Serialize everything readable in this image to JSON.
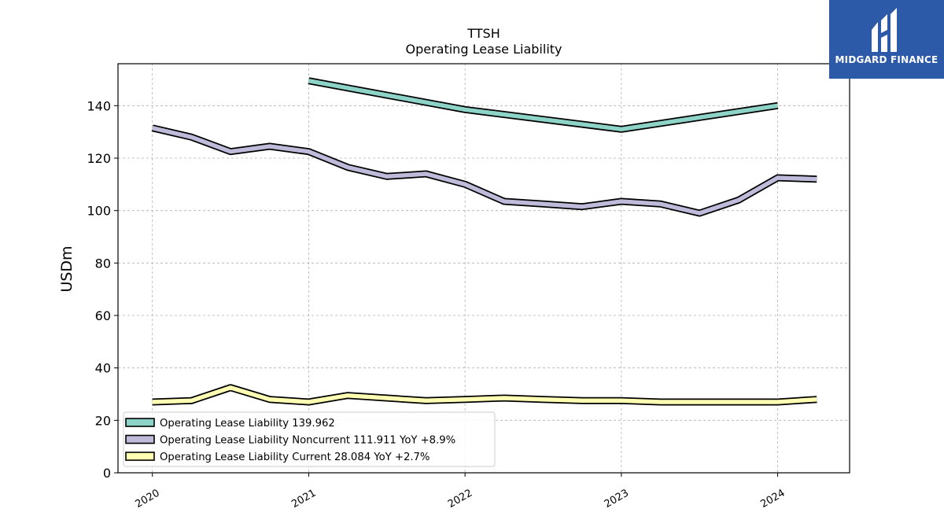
{
  "chart_data": {
    "type": "line",
    "title": "TTSH",
    "subtitle": "Operating Lease Liability",
    "ylabel": "USDm",
    "xlabel": "",
    "ylim": [
      0,
      156
    ],
    "yticks": [
      0,
      20,
      40,
      60,
      80,
      100,
      120,
      140
    ],
    "xlim": [
      2019.78,
      2024.46
    ],
    "xticks": [
      2020,
      2021,
      2022,
      2023,
      2024
    ],
    "xtick_labels": [
      "2020",
      "2021",
      "2022",
      "2023",
      "2024"
    ],
    "grid": true,
    "legend_position": "lower-left",
    "series": [
      {
        "name": "Operating Lease Liability  139.962",
        "color": "#8dd3c7",
        "x": [
          2021.0,
          2022.0,
          2023.0,
          2024.0
        ],
        "y": [
          149.5,
          138.5,
          131.0,
          140.0
        ]
      },
      {
        "name": "Operating Lease Liability Noncurrent  111.911 YoY +8.9%",
        "color": "#bebada",
        "x": [
          2020.0,
          2020.25,
          2020.5,
          2020.75,
          2021.0,
          2021.25,
          2021.5,
          2021.75,
          2022.0,
          2022.25,
          2022.5,
          2022.75,
          2023.0,
          2023.25,
          2023.5,
          2023.75,
          2024.0,
          2024.25
        ],
        "y": [
          131.5,
          128.0,
          122.5,
          124.5,
          122.5,
          116.5,
          113.0,
          114.0,
          110.0,
          103.5,
          102.5,
          101.5,
          103.5,
          102.5,
          99.0,
          104.0,
          112.5,
          112.0
        ]
      },
      {
        "name": "Operating Lease Liability Current  28.084 YoY +2.7%",
        "color": "#ffffb3",
        "x": [
          2020.0,
          2020.25,
          2020.5,
          2020.75,
          2021.0,
          2021.25,
          2021.5,
          2021.75,
          2022.0,
          2022.25,
          2022.5,
          2022.75,
          2023.0,
          2023.25,
          2023.5,
          2023.75,
          2024.0,
          2024.25
        ],
        "y": [
          27.0,
          27.5,
          32.5,
          28.0,
          27.0,
          29.5,
          28.5,
          27.5,
          28.0,
          28.5,
          28.0,
          27.5,
          27.5,
          27.0,
          27.0,
          27.0,
          27.0,
          28.0
        ]
      }
    ]
  },
  "logo": {
    "text": "MIDGARD FINANCE",
    "icon": "midgard-finance-logo-icon"
  }
}
